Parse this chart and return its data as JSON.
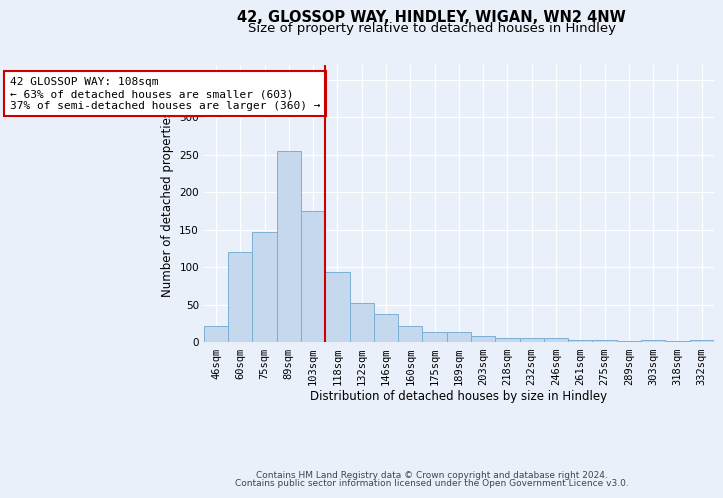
{
  "title1": "42, GLOSSOP WAY, HINDLEY, WIGAN, WN2 4NW",
  "title2": "Size of property relative to detached houses in Hindley",
  "xlabel": "Distribution of detached houses by size in Hindley",
  "ylabel": "Number of detached properties",
  "categories": [
    "46sqm",
    "60sqm",
    "75sqm",
    "89sqm",
    "103sqm",
    "118sqm",
    "132sqm",
    "146sqm",
    "160sqm",
    "175sqm",
    "189sqm",
    "203sqm",
    "218sqm",
    "232sqm",
    "246sqm",
    "261sqm",
    "275sqm",
    "289sqm",
    "303sqm",
    "318sqm",
    "332sqm"
  ],
  "values": [
    22,
    120,
    147,
    255,
    175,
    93,
    52,
    38,
    22,
    13,
    13,
    8,
    6,
    5,
    5,
    3,
    3,
    2,
    3,
    2,
    3
  ],
  "bar_color": "#c5d8ed",
  "bar_edge_color": "#7bafd4",
  "annotation_text": "42 GLOSSOP WAY: 108sqm\n← 63% of detached houses are smaller (603)\n37% of semi-detached houses are larger (360) →",
  "annotation_box_color": "#ffffff",
  "annotation_box_edge": "#cc0000",
  "ylim": [
    0,
    370
  ],
  "yticks": [
    0,
    50,
    100,
    150,
    200,
    250,
    300,
    350
  ],
  "background_color": "#eaf0f9",
  "footer1": "Contains HM Land Registry data © Crown copyright and database right 2024.",
  "footer2": "Contains public sector information licensed under the Open Government Licence v3.0.",
  "title1_fontsize": 10.5,
  "title2_fontsize": 9.5,
  "axis_label_fontsize": 8.5,
  "tick_fontsize": 7.5,
  "annotation_fontsize": 8,
  "footer_fontsize": 6.5
}
